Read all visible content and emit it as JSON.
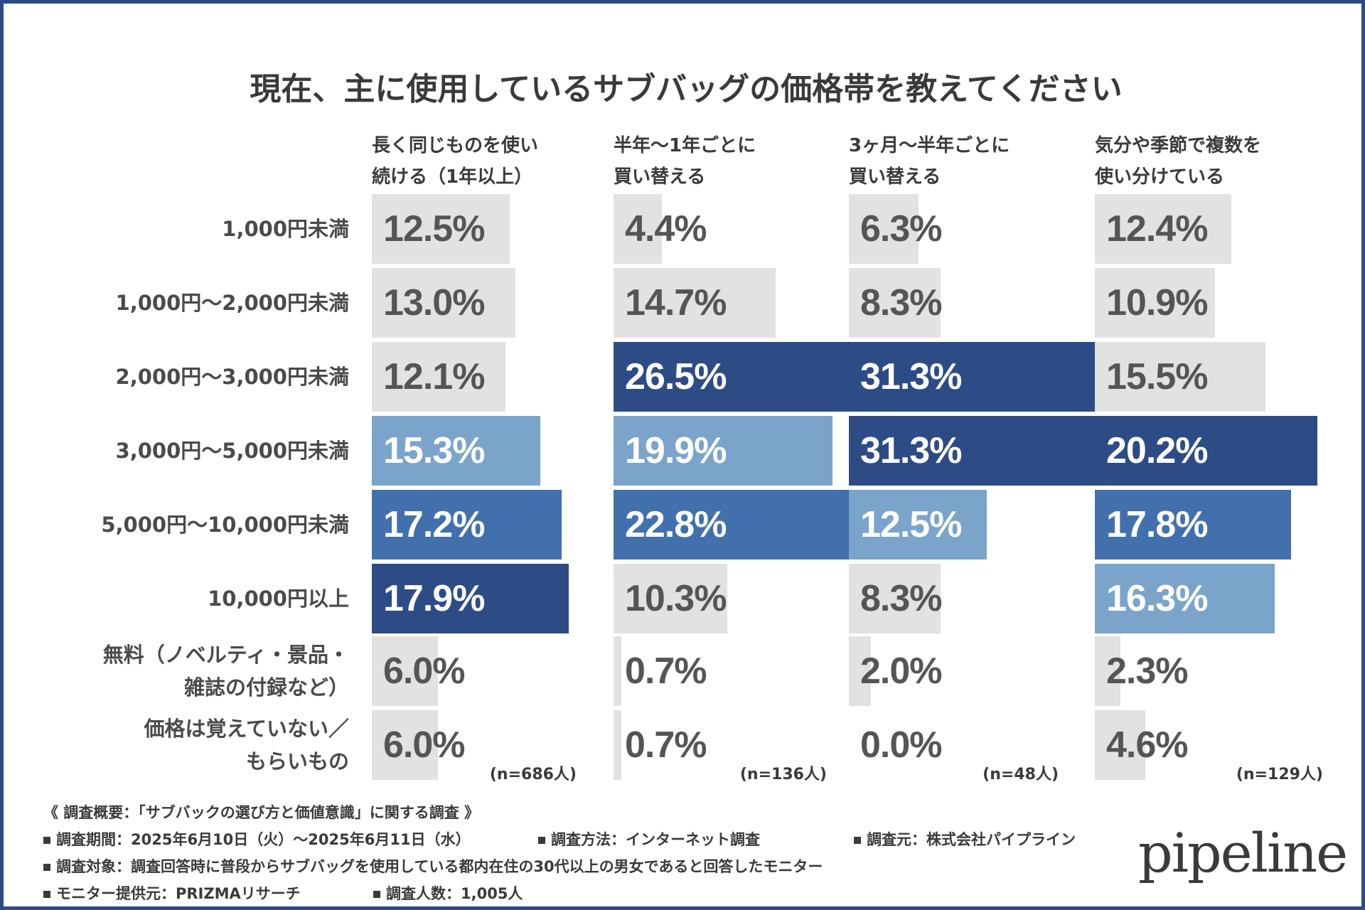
{
  "title": "現在、主に使用しているサブバッグの価格帯を教えてください",
  "chart_data": {
    "type": "bar",
    "orientation": "horizontal",
    "unit": "%",
    "title": "現在、主に使用しているサブバッグの価格帯を教えてください",
    "categories": [
      "1,000円未満",
      "1,000円〜2,000円未満",
      "2,000円〜3,000円未満",
      "3,000円〜5,000円未満",
      "5,000円〜10,000円未満",
      "10,000円以上",
      [
        "無料（ノベルティ・景品・",
        "雑誌の付録など）"
      ],
      [
        "価格は覚えていない／",
        "もらいもの"
      ]
    ],
    "series": [
      {
        "name": [
          "長く同じものを使い",
          "続ける（1年以上）"
        ],
        "n_label": "(n=686人)",
        "values": [
          12.5,
          13.0,
          12.1,
          15.3,
          17.2,
          17.9,
          6.0,
          6.0
        ],
        "labels": [
          "12.5%",
          "13.0%",
          "12.1%",
          "15.3%",
          "17.2%",
          "17.9%",
          "6.0%",
          "6.0%"
        ],
        "ranks": [
          0,
          0,
          0,
          3,
          2,
          1,
          0,
          0
        ]
      },
      {
        "name": [
          "半年〜1年ごとに",
          "買い替える"
        ],
        "n_label": "(n=136人)",
        "values": [
          4.4,
          14.7,
          26.5,
          19.9,
          22.8,
          10.3,
          0.7,
          0.7
        ],
        "labels": [
          "4.4%",
          "14.7%",
          "26.5%",
          "19.9%",
          "22.8%",
          "10.3%",
          "0.7%",
          "0.7%"
        ],
        "ranks": [
          0,
          0,
          1,
          3,
          2,
          0,
          0,
          0
        ]
      },
      {
        "name": [
          "3ヶ月〜半年ごとに",
          "買い替える"
        ],
        "n_label": "(n=48人)",
        "values": [
          6.3,
          8.3,
          31.3,
          31.3,
          12.5,
          8.3,
          2.0,
          0.0
        ],
        "labels": [
          "6.3%",
          "8.3%",
          "31.3%",
          "31.3%",
          "12.5%",
          "8.3%",
          "2.0%",
          "0.0%"
        ],
        "ranks": [
          0,
          0,
          1,
          1,
          3,
          0,
          0,
          0
        ]
      },
      {
        "name": [
          "気分や季節で複数を",
          "使い分けている"
        ],
        "n_label": "(n=129人)",
        "values": [
          12.4,
          10.9,
          15.5,
          20.2,
          17.8,
          16.3,
          2.3,
          4.6
        ],
        "labels": [
          "12.4%",
          "10.9%",
          "15.5%",
          "20.2%",
          "17.8%",
          "16.3%",
          "2.3%",
          "4.6%"
        ],
        "ranks": [
          0,
          0,
          0,
          1,
          2,
          3,
          0,
          0
        ]
      }
    ],
    "rank_colors": {
      "0": "#e2e2e2",
      "1": "#2d4c86",
      "2": "#4270ad",
      "3": "#7ba4cb"
    },
    "text_colors": {
      "dark": "#555555",
      "light": "#ffffff"
    }
  },
  "footer": {
    "heading": "《 調査概要：「サブバックの選び方と価値意識」に関する調査 》",
    "period": "調査期間：2025年6月10日（火）〜2025年6月11日（水）",
    "method": "調査方法：インターネット調査",
    "source": "調査元：株式会社パイプライン",
    "target": "調査対象：調査回答時に普段からサブバッグを使用している都内在住の30代以上の男女であると回答したモニター",
    "provider": "モニター提供元：PRIZMAリサーチ",
    "count": "調査人数：1,005人"
  },
  "logo": "pipeline"
}
